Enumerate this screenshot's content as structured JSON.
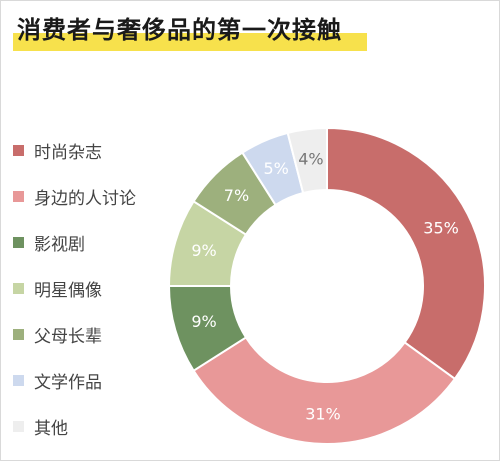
{
  "chart_data": {
    "type": "pie",
    "title": "消费者与奢侈品的第一次接触",
    "categories": [
      "时尚杂志",
      "身边的人讨论",
      "影视剧",
      "明星偶像",
      "父母长辈",
      "文学作品",
      "其他"
    ],
    "values": [
      35,
      31,
      9,
      9,
      7,
      5,
      4
    ],
    "value_labels": [
      "35%",
      "31%",
      "9%",
      "9%",
      "7%",
      "5%",
      "4%"
    ],
    "colors": [
      "#c86d6b",
      "#e89898",
      "#6e9260",
      "#c6d5a4",
      "#9db07d",
      "#cdd9ee",
      "#eeeeee"
    ],
    "donut": true,
    "start": "top",
    "direction": "clockwise",
    "legend": "left"
  }
}
